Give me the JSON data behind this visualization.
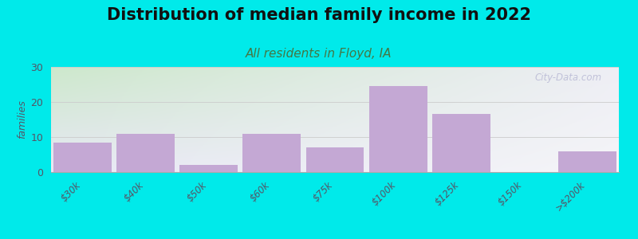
{
  "title": "Distribution of median family income in 2022",
  "subtitle": "All residents in Floyd, IA",
  "ylabel": "families",
  "categories": [
    "$30k",
    "$40k",
    "$50k",
    "$60k",
    "$75k",
    "$100k",
    "$125k",
    "$150k",
    ">$200k"
  ],
  "values": [
    8.5,
    11,
    2,
    11,
    7,
    24.5,
    16.5,
    0,
    6
  ],
  "bar_color": "#c4a8d4",
  "ylim": [
    0,
    30
  ],
  "yticks": [
    0,
    10,
    20,
    30
  ],
  "background_color": "#00eaea",
  "plot_bg_topleft": "#cde8cc",
  "plot_bg_topright": "#e8f0e8",
  "plot_bg_bottomleft": "#e8e8f5",
  "plot_bg_bottomright": "#f0f0f8",
  "title_fontsize": 15,
  "subtitle_fontsize": 11,
  "subtitle_color": "#447744",
  "watermark": "City-Data.com"
}
